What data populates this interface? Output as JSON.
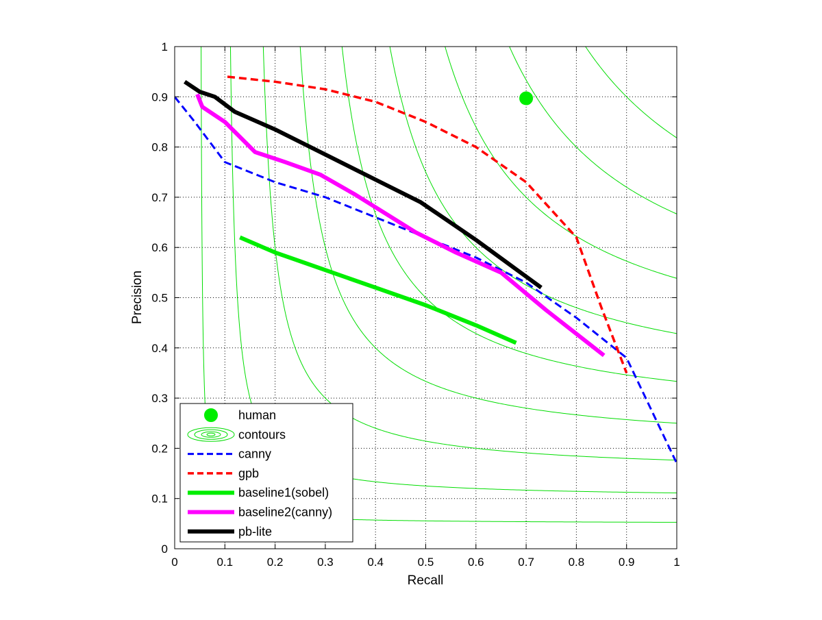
{
  "chart_data": {
    "type": "line",
    "title": "",
    "xlabel": "Recall",
    "ylabel": "Precision",
    "xlim": [
      0,
      1
    ],
    "ylim": [
      0,
      1
    ],
    "xticks": [
      "0",
      "0.1",
      "0.2",
      "0.3",
      "0.4",
      "0.5",
      "0.6",
      "0.7",
      "0.8",
      "0.9",
      "1"
    ],
    "yticks": [
      "0",
      "0.1",
      "0.2",
      "0.3",
      "0.4",
      "0.5",
      "0.6",
      "0.7",
      "0.8",
      "0.9",
      "1"
    ],
    "grid": "dotted",
    "legend_position": "bottom-left",
    "contours": {
      "name": "contours",
      "color": "#00dd00",
      "f_levels": [
        0.1,
        0.2,
        0.3,
        0.4,
        0.5,
        0.6,
        0.7,
        0.8,
        0.9
      ]
    },
    "human": {
      "name": "human",
      "color": "#00ee00",
      "x": 0.7,
      "y": 0.897
    },
    "series": [
      {
        "name": "canny",
        "color": "#0000ff",
        "style": "dashed",
        "width": 3,
        "x": [
          0.0,
          0.04,
          0.1,
          0.2,
          0.3,
          0.4,
          0.5,
          0.6,
          0.7,
          0.8,
          0.9,
          1.0
        ],
        "y": [
          0.9,
          0.85,
          0.77,
          0.73,
          0.7,
          0.66,
          0.62,
          0.58,
          0.53,
          0.46,
          0.38,
          0.17
        ]
      },
      {
        "name": "gpb",
        "color": "#ff0000",
        "style": "dashed",
        "width": 3.5,
        "x": [
          0.105,
          0.2,
          0.3,
          0.4,
          0.5,
          0.6,
          0.7,
          0.8,
          0.85,
          0.9
        ],
        "y": [
          0.94,
          0.93,
          0.915,
          0.89,
          0.85,
          0.8,
          0.73,
          0.62,
          0.48,
          0.35
        ]
      },
      {
        "name": "baseline1(sobel)",
        "color": "#00ee00",
        "style": "solid",
        "width": 6,
        "x": [
          0.13,
          0.2,
          0.3,
          0.4,
          0.5,
          0.6,
          0.68
        ],
        "y": [
          0.62,
          0.59,
          0.555,
          0.52,
          0.485,
          0.445,
          0.41
        ]
      },
      {
        "name": "baseline2(canny)",
        "color": "#ff00ff",
        "style": "solid",
        "width": 6,
        "x": [
          0.045,
          0.055,
          0.1,
          0.16,
          0.22,
          0.29,
          0.36,
          0.48,
          0.56,
          0.65,
          0.74,
          0.855
        ],
        "y": [
          0.905,
          0.88,
          0.85,
          0.79,
          0.77,
          0.745,
          0.705,
          0.63,
          0.59,
          0.55,
          0.475,
          0.385
        ]
      },
      {
        "name": "pb-lite",
        "color": "#000000",
        "style": "solid",
        "width": 6,
        "x": [
          0.02,
          0.05,
          0.08,
          0.12,
          0.2,
          0.3,
          0.4,
          0.49,
          0.6,
          0.73
        ],
        "y": [
          0.93,
          0.91,
          0.9,
          0.87,
          0.835,
          0.785,
          0.735,
          0.69,
          0.615,
          0.52
        ]
      }
    ]
  }
}
